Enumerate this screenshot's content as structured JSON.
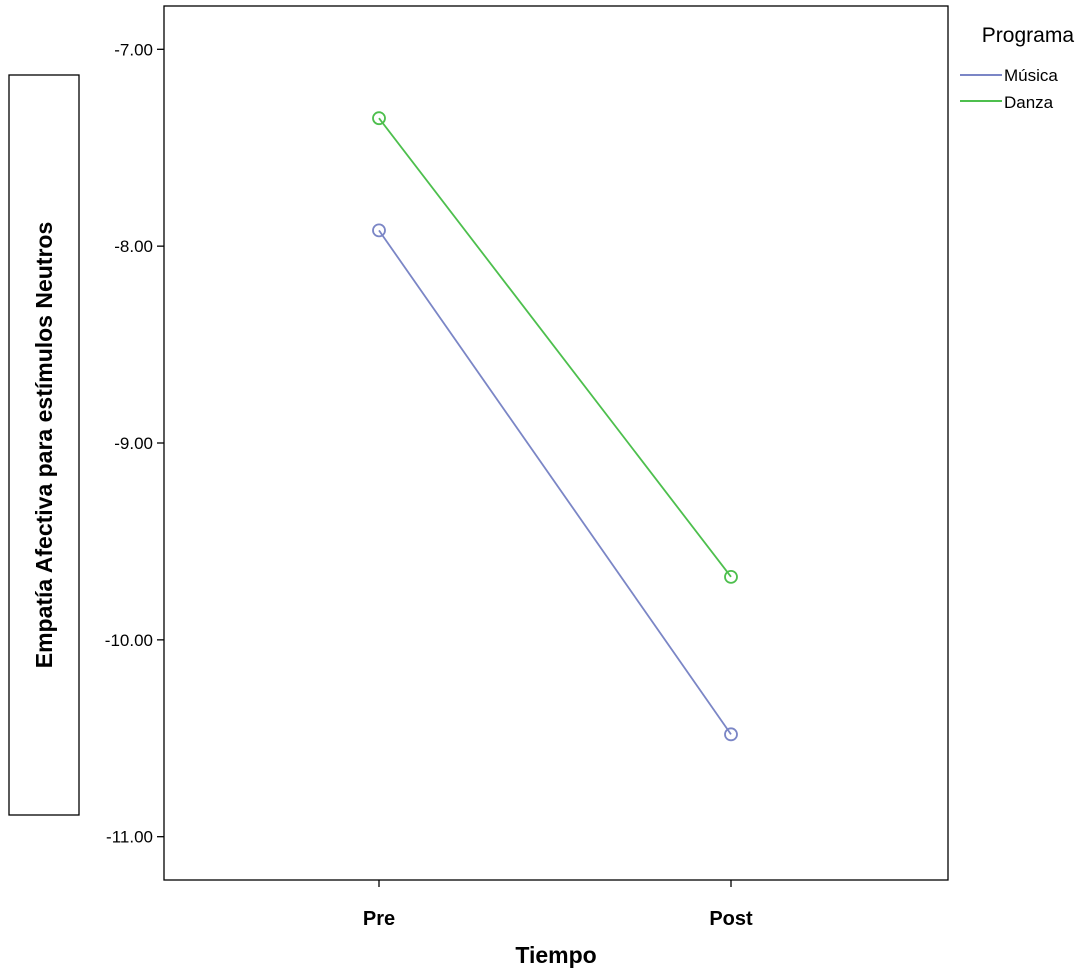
{
  "chart_data": {
    "type": "line",
    "xlabel": "Tiempo",
    "ylabel": "Empatía Afectiva para estímulos Neutros",
    "categories": [
      "Pre",
      "Post"
    ],
    "yticks": [
      "-7.00",
      "-8.00",
      "-9.00",
      "-10.00",
      "-11.00"
    ],
    "ytick_values": [
      -7,
      -8,
      -9,
      -10,
      -11
    ],
    "ylim": [
      -11.22,
      -6.78
    ],
    "legend": {
      "title": "Programa",
      "position": "top-right"
    },
    "series": [
      {
        "name": "Música",
        "values": [
          -7.92,
          -10.48
        ],
        "color": "#7b86c6"
      },
      {
        "name": "Danza",
        "values": [
          -7.35,
          -9.68
        ],
        "color": "#4dbf4d"
      }
    ],
    "grid": false
  }
}
